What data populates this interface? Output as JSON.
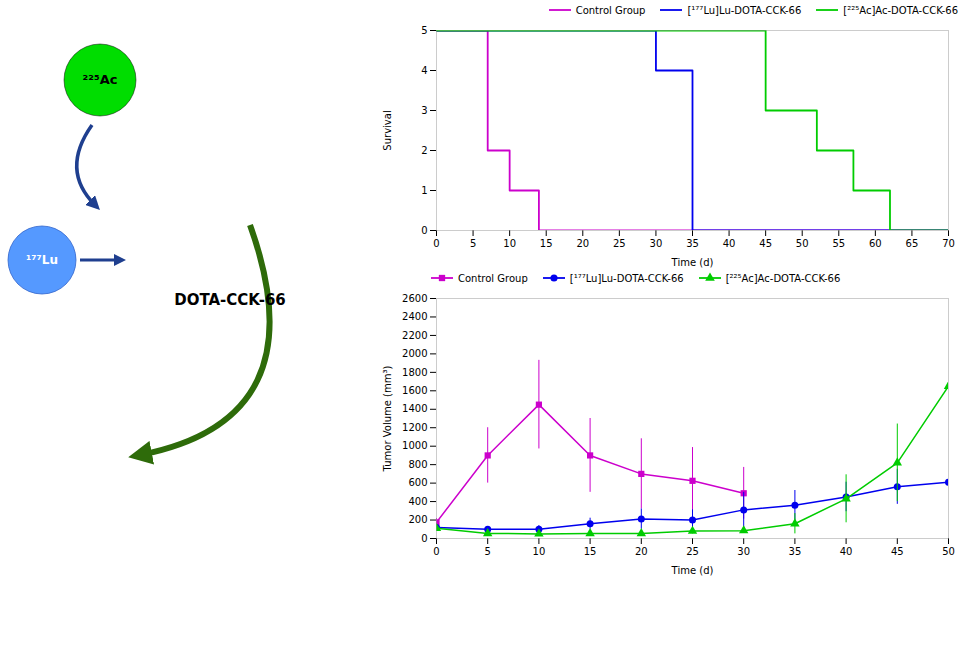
{
  "chart_data": [
    {
      "type": "line",
      "xlabel": "Time (d)",
      "ylabel": "Survival",
      "xlim": [
        0,
        70
      ],
      "ylim": [
        0,
        5
      ],
      "xticks": [
        0,
        5,
        10,
        15,
        20,
        25,
        30,
        35,
        40,
        45,
        50,
        55,
        60,
        65,
        70
      ],
      "yticks": [
        0,
        1,
        2,
        3,
        4,
        5
      ],
      "legend": "upper right",
      "series": [
        {
          "name": "Control Group",
          "color": "#CC00CC",
          "x": [
            0,
            7,
            7,
            10,
            10,
            14,
            14,
            18,
            18,
            70
          ],
          "values": [
            5,
            5,
            2,
            2,
            1,
            1,
            0,
            0,
            0,
            0
          ]
        },
        {
          "name": "[¹⁷⁷Lu]Lu-DOTA-CCK-66",
          "color": "#0000EE",
          "x": [
            0,
            30,
            30,
            35,
            35,
            70
          ],
          "values": [
            5,
            5,
            4,
            4,
            0,
            0
          ]
        },
        {
          "name": "[²²⁵Ac]Ac-DOTA-CCK-66",
          "color": "#00CC00",
          "x": [
            0,
            45,
            45,
            52,
            52,
            57,
            57,
            62,
            62,
            65,
            65,
            70
          ],
          "values": [
            5,
            5,
            3,
            3,
            2,
            2,
            1,
            1,
            0,
            0,
            0,
            0
          ]
        }
      ]
    },
    {
      "type": "line",
      "xlabel": "Time (d)",
      "ylabel": "Tumor Volume (mm³)",
      "xlim": [
        0,
        50
      ],
      "ylim": [
        0,
        2600
      ],
      "xticks": [
        0,
        5,
        10,
        15,
        20,
        25,
        30,
        35,
        40,
        45,
        50
      ],
      "yticks": [
        0,
        200,
        400,
        600,
        800,
        1000,
        1200,
        1400,
        1600,
        1800,
        2000,
        2200,
        2400,
        2600
      ],
      "legend": "upper left",
      "series": [
        {
          "name": "Control Group",
          "color": "#CC00CC",
          "marker": "square",
          "x": [
            0,
            5,
            10,
            15,
            20,
            25,
            30
          ],
          "values": [
            175,
            900,
            1450,
            900,
            700,
            625,
            490
          ],
          "yerr": [
            40,
            300,
            480,
            400,
            380,
            360,
            280
          ]
        },
        {
          "name": "[¹⁷⁷Lu]Lu-DOTA-CCK-66",
          "color": "#0000EE",
          "marker": "circle",
          "x": [
            0,
            5,
            10,
            15,
            20,
            25,
            30,
            35,
            40,
            45,
            50
          ],
          "values": [
            120,
            100,
            100,
            160,
            210,
            200,
            310,
            360,
            450,
            560,
            610
          ],
          "yerr": [
            30,
            30,
            40,
            60,
            110,
            110,
            190,
            160,
            160,
            190,
            210
          ]
        },
        {
          "name": "[²²⁵Ac]Ac-DOTA-CCK-66",
          "color": "#00CC00",
          "marker": "triangle",
          "x": [
            0,
            5,
            10,
            15,
            20,
            25,
            30,
            35,
            40,
            45,
            50
          ],
          "values": [
            110,
            55,
            50,
            55,
            55,
            80,
            85,
            160,
            430,
            820,
            1650
          ],
          "yerr": [
            30,
            20,
            20,
            20,
            25,
            30,
            30,
            110,
            260,
            420,
            620
          ]
        }
      ]
    },
    {
      "type": "diagram",
      "annotations": [
        "²²⁵Ac",
        "¹⁷⁷Lu",
        "DOTA-CCK-66"
      ]
    }
  ]
}
